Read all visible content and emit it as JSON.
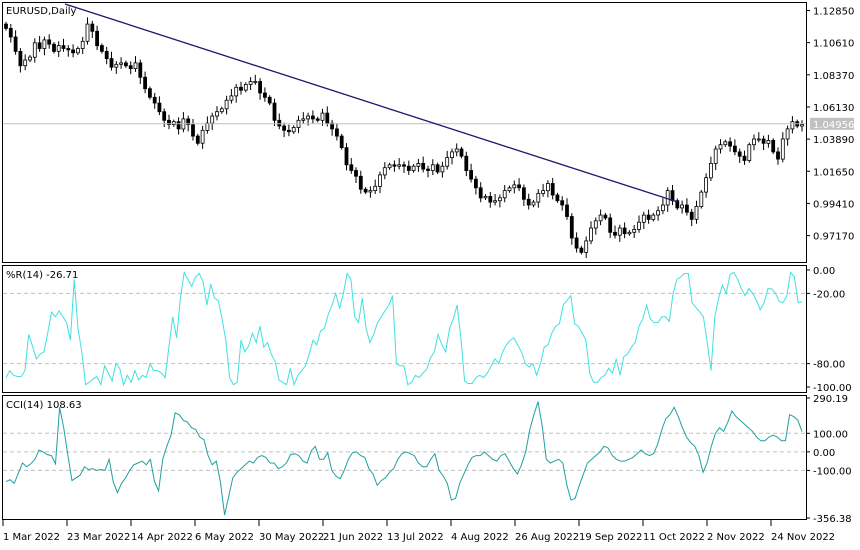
{
  "window": {
    "title": "EURUSD,Daily",
    "symbol": "EURUSD",
    "timeframe": "Daily"
  },
  "colors": {
    "background": "#ffffff",
    "border": "#000000",
    "trendline": "#191970",
    "bid_line": "#c0c0c0",
    "bid_label_bg": "#c0c0c0",
    "bid_label_text": "#ffffff",
    "wpr_line": "#40e0e0",
    "cci_line": "#20a0a0",
    "level_line": "#c0c0c0"
  },
  "chart_data": [
    {
      "type": "candlestick",
      "title": "EURUSD,Daily",
      "y_ticks": [
        "1.12850",
        "1.10610",
        "1.08370",
        "1.06130",
        "1.03890",
        "1.01650",
        "0.99410",
        "0.97170"
      ],
      "ylim": [
        0.954,
        1.133
      ],
      "current_price_label": "1.04956",
      "current_price": 1.04956,
      "trendline": {
        "from": {
          "date": "22 Mar 2022",
          "price": 1.133
        },
        "to": {
          "date": "14 Oct 2022",
          "price": 0.995
        }
      },
      "x_ticks": [
        "1 Mar 2022",
        "23 Mar 2022",
        "14 Apr 2022",
        "6 May 2022",
        "30 May 2022",
        "21 Jun 2022",
        "13 Jul 2022",
        "4 Aug 2022",
        "26 Aug 2022",
        "19 Sep 2022",
        "11 Oct 2022",
        "2 Nov 2022",
        "24 Nov 2022"
      ],
      "close_path": [
        1.116,
        1.11,
        1.1,
        1.09,
        1.094,
        1.096,
        1.106,
        1.102,
        1.108,
        1.105,
        1.1,
        1.104,
        1.102,
        1.101,
        1.099,
        1.102,
        1.107,
        1.119,
        1.114,
        1.104,
        1.1,
        1.095,
        1.089,
        1.091,
        1.092,
        1.09,
        1.088,
        1.092,
        1.082,
        1.074,
        1.068,
        1.064,
        1.058,
        1.052,
        1.049,
        1.051,
        1.046,
        1.053,
        1.049,
        1.041,
        1.036,
        1.045,
        1.05,
        1.055,
        1.058,
        1.06,
        1.066,
        1.069,
        1.075,
        1.073,
        1.077,
        1.079,
        1.079,
        1.071,
        1.068,
        1.064,
        1.052,
        1.048,
        1.045,
        1.044,
        1.047,
        1.052,
        1.053,
        1.055,
        1.053,
        1.052,
        1.057,
        1.05,
        1.046,
        1.041,
        1.033,
        1.021,
        1.017,
        1.013,
        1.004,
        1.002,
        1.003,
        1.006,
        1.014,
        1.019,
        1.021,
        1.02,
        1.021,
        1.02,
        1.017,
        1.02,
        1.022,
        1.018,
        1.017,
        1.021,
        1.016,
        1.02,
        1.026,
        1.03,
        1.032,
        1.027,
        1.017,
        1.011,
        1.005,
        0.998,
        0.999,
        0.995,
        0.996,
        0.998,
        1.003,
        1.005,
        1.007,
        1.005,
        0.997,
        0.993,
        0.995,
        1.001,
        1.003,
        1.008,
        1.0,
        0.996,
        0.993,
        0.985,
        0.97,
        0.963,
        0.96,
        0.968,
        0.977,
        0.982,
        0.986,
        0.984,
        0.974,
        0.972,
        0.977,
        0.973,
        0.974,
        0.976,
        0.981,
        0.986,
        0.983,
        0.986,
        0.989,
        0.993,
        1.003,
        0.996,
        0.991,
        0.993,
        0.988,
        0.983,
        0.992,
        1.002,
        1.012,
        1.022,
        1.032,
        1.035,
        1.037,
        1.034,
        1.03,
        1.027,
        1.024,
        1.035,
        1.039,
        1.039,
        1.036,
        1.038,
        1.03,
        1.025,
        1.039,
        1.046,
        1.051,
        1.048,
        1.049
      ]
    },
    {
      "type": "line",
      "title": "%R(14) -26.71",
      "indicator": "Williams %R",
      "period": 14,
      "last_value": -26.71,
      "y_ticks": [
        "0.00",
        "-20.00",
        "-80.00",
        "-100.00"
      ],
      "levels": [
        -20,
        -80
      ],
      "ylim": [
        -100,
        0
      ],
      "values": [
        -92,
        -86,
        -90,
        -91,
        -91,
        -86,
        -55,
        -65,
        -76,
        -72,
        -70,
        -54,
        -36,
        -40,
        -35,
        -40,
        -45,
        -60,
        -8,
        -50,
        -70,
        -98,
        -96,
        -93,
        -91,
        -98,
        -82,
        -88,
        -95,
        -80,
        -84,
        -98,
        -90,
        -96,
        -86,
        -94,
        -90,
        -92,
        -80,
        -86,
        -86,
        -88,
        -92,
        -65,
        -40,
        -58,
        -24,
        -2,
        -8,
        -14,
        -6,
        -3,
        -10,
        -30,
        -12,
        -24,
        -26,
        -42,
        -60,
        -92,
        -98,
        -96,
        -60,
        -70,
        -65,
        -54,
        -62,
        -48,
        -66,
        -62,
        -72,
        -78,
        -94,
        -96,
        -98,
        -84,
        -98,
        -90,
        -86,
        -82,
        -72,
        -60,
        -64,
        -52,
        -50,
        -38,
        -30,
        -20,
        -33,
        -20,
        -3,
        -8,
        -40,
        -45,
        -24,
        -50,
        -62,
        -55,
        -45,
        -40,
        -35,
        -30,
        -22,
        -80,
        -82,
        -82,
        -98,
        -96,
        -90,
        -92,
        -88,
        -85,
        -75,
        -70,
        -55,
        -64,
        -70,
        -50,
        -42,
        -30,
        -58,
        -95,
        -97,
        -97,
        -92,
        -90,
        -92,
        -88,
        -82,
        -76,
        -80,
        -70,
        -64,
        -60,
        -58,
        -64,
        -70,
        -80,
        -83,
        -80,
        -90,
        -80,
        -66,
        -64,
        -54,
        -48,
        -46,
        -30,
        -26,
        -22,
        -46,
        -48,
        -54,
        -60,
        -88,
        -96,
        -96,
        -92,
        -90,
        -84,
        -88,
        -76,
        -90,
        -74,
        -72,
        -66,
        -62,
        -48,
        -42,
        -30,
        -42,
        -45,
        -45,
        -40,
        -40,
        -44,
        -20,
        -8,
        -6,
        -3,
        -3,
        -28,
        -32,
        -36,
        -40,
        -62,
        -86,
        -40,
        -24,
        -13,
        -20,
        -4,
        -2,
        -8,
        -16,
        -22,
        -16,
        -20,
        -26,
        -34,
        -28,
        -16,
        -16,
        -20,
        -27,
        -28,
        -22,
        -2,
        -6,
        -28,
        -27
      ]
    },
    {
      "type": "line",
      "title": "CCI(14) 108.63",
      "indicator": "Commodity Channel Index",
      "period": 14,
      "last_value": 108.63,
      "y_ticks": [
        "290.19",
        "100.00",
        "0.00",
        "-100.00",
        "-356.38"
      ],
      "levels": [
        100,
        0,
        -100
      ],
      "ylim": [
        -356.38,
        290.19
      ],
      "values": [
        -160,
        -150,
        -170,
        -115,
        -60,
        -80,
        -65,
        -40,
        10,
        0,
        -15,
        -20,
        -65,
        240,
        130,
        -20,
        -155,
        -140,
        -125,
        -80,
        -95,
        -90,
        -100,
        -95,
        -100,
        -40,
        -160,
        -220,
        -170,
        -140,
        -100,
        -70,
        -60,
        -50,
        -70,
        -40,
        -160,
        -210,
        -40,
        30,
        90,
        210,
        200,
        170,
        160,
        130,
        120,
        80,
        65,
        -20,
        -70,
        -50,
        -165,
        -340,
        -240,
        -140,
        -110,
        -90,
        -70,
        -50,
        -60,
        -30,
        -20,
        -30,
        -60,
        -60,
        -90,
        -80,
        -60,
        -15,
        -10,
        -20,
        -50,
        -60,
        5,
        30,
        -40,
        -40,
        -5,
        -100,
        -130,
        -145,
        -100,
        -40,
        -5,
        0,
        -20,
        -30,
        -90,
        -120,
        -180,
        -155,
        -140,
        -110,
        -90,
        -40,
        -10,
        0,
        -10,
        -20,
        -60,
        -80,
        -80,
        -40,
        -10,
        -100,
        -130,
        -170,
        -260,
        -250,
        -170,
        -120,
        -70,
        -30,
        -20,
        -20,
        0,
        -20,
        -40,
        -50,
        -20,
        -10,
        -50,
        -90,
        -120,
        -70,
        0,
        120,
        200,
        270,
        140,
        -40,
        -60,
        -50,
        -40,
        -60,
        -180,
        -260,
        -250,
        -180,
        -120,
        -60,
        -40,
        -20,
        0,
        30,
        20,
        -20,
        -40,
        -50,
        -50,
        -40,
        -30,
        -10,
        10,
        -10,
        -20,
        -10,
        40,
        120,
        180,
        200,
        240,
        190,
        130,
        80,
        50,
        30,
        -20,
        -110,
        -60,
        30,
        100,
        130,
        110,
        160,
        220,
        190,
        170,
        150,
        130,
        110,
        80,
        60,
        60,
        80,
        90,
        80,
        60,
        60,
        200,
        190,
        170,
        108.63
      ]
    }
  ]
}
